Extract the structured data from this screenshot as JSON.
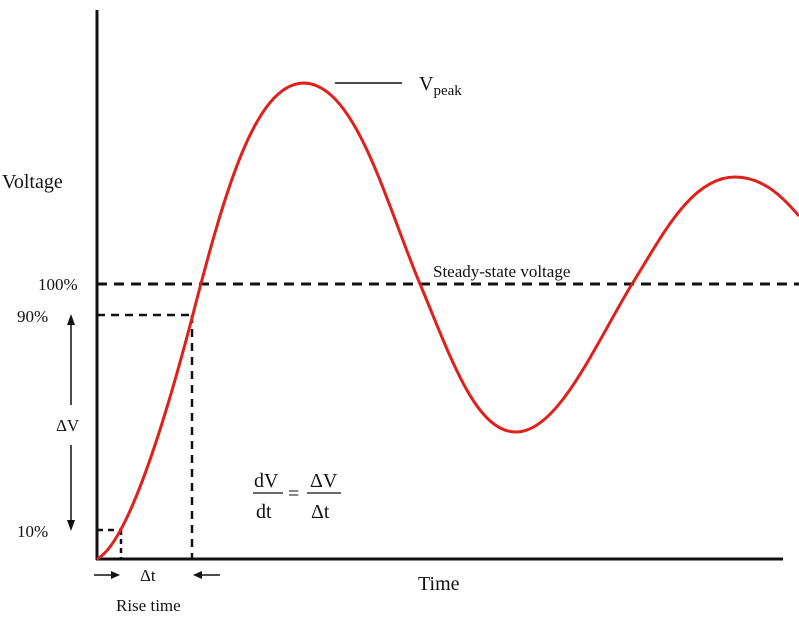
{
  "axes": {
    "y_label": "Voltage",
    "x_label": "Time"
  },
  "levels": {
    "pct_100": "100%",
    "pct_90": "90%",
    "pct_10": "10%"
  },
  "annotations": {
    "v_peak_main": "V",
    "v_peak_sub": "peak",
    "steady_state": "Steady-state voltage",
    "delta_v": "ΔV",
    "delta_t": "Δt",
    "rise_time": "Rise time"
  },
  "formula": {
    "lhs_num": "dV",
    "lhs_den": "dt",
    "equals": "=",
    "rhs_num": "ΔV",
    "rhs_den": "Δt"
  },
  "colors": {
    "curve": "#e0201b",
    "ink": "#111111"
  }
}
